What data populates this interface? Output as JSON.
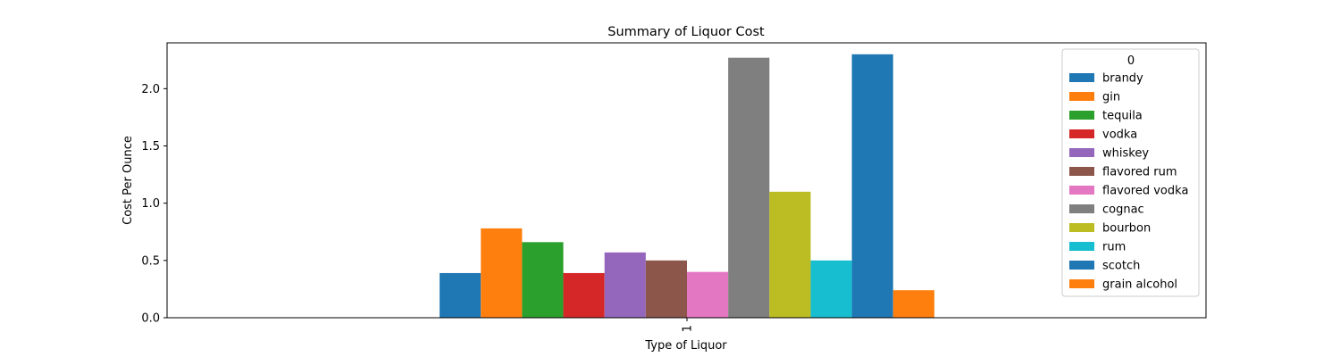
{
  "chart_data": {
    "type": "bar",
    "title": "Summary of Liquor Cost",
    "xlabel": "Type of Liquor",
    "ylabel": "Cost Per Ounce",
    "categories": [
      "1"
    ],
    "ylim": [
      0,
      2.4
    ],
    "yticks": [
      0.0,
      0.5,
      1.0,
      1.5,
      2.0
    ],
    "ytick_labels": [
      "0.0",
      "0.5",
      "1.0",
      "1.5",
      "2.0"
    ],
    "grid": false,
    "legend": {
      "title": "0",
      "placement": "top-right"
    },
    "series": [
      {
        "name": "brandy",
        "values": [
          0.39
        ],
        "color": "#1f77b4"
      },
      {
        "name": "gin",
        "values": [
          0.78
        ],
        "color": "#ff7f0e"
      },
      {
        "name": "tequila",
        "values": [
          0.66
        ],
        "color": "#2ca02c"
      },
      {
        "name": "vodka",
        "values": [
          0.39
        ],
        "color": "#d62728"
      },
      {
        "name": "whiskey",
        "values": [
          0.57
        ],
        "color": "#9467bd"
      },
      {
        "name": "flavored rum",
        "values": [
          0.5
        ],
        "color": "#8c564b"
      },
      {
        "name": "flavored vodka",
        "values": [
          0.4
        ],
        "color": "#e377c2"
      },
      {
        "name": "cognac",
        "values": [
          2.27
        ],
        "color": "#7f7f7f"
      },
      {
        "name": "bourbon",
        "values": [
          1.1
        ],
        "color": "#bcbd22"
      },
      {
        "name": "rum",
        "values": [
          0.5
        ],
        "color": "#17becf"
      },
      {
        "name": "scotch",
        "values": [
          2.3
        ],
        "color": "#1f77b4"
      },
      {
        "name": "grain alcohol",
        "values": [
          0.24
        ],
        "color": "#ff7f0e"
      }
    ]
  }
}
